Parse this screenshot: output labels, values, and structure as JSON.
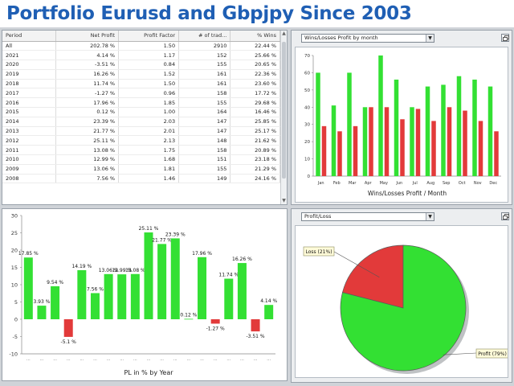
{
  "title": "Portfolio Eurusd and Gbpjpy Since 2003",
  "colors": {
    "positive": "#1a2fd0",
    "negative": "#e0201c",
    "bar_green": "#33e033",
    "bar_red": "#e23a3a"
  },
  "table": {
    "headers": [
      "Period",
      "Net Profit",
      "Profit Factor",
      "# of trad...",
      "% Wins"
    ],
    "rows": [
      [
        "All",
        "202.78 %",
        "1.50",
        "2910",
        "22.44 %"
      ],
      [
        "2021",
        "4.14 %",
        "1.17",
        "152",
        "25.66 %"
      ],
      [
        "2020",
        "-3.51 %",
        "0.84",
        "155",
        "20.65 %"
      ],
      [
        "2019",
        "16.26 %",
        "1.52",
        "161",
        "22.36 %"
      ],
      [
        "2018",
        "11.74 %",
        "1.50",
        "161",
        "23.60 %"
      ],
      [
        "2017",
        "-1.27 %",
        "0.96",
        "158",
        "17.72 %"
      ],
      [
        "2016",
        "17.96 %",
        "1.85",
        "155",
        "29.68 %"
      ],
      [
        "2015",
        "0.12 %",
        "1.00",
        "164",
        "16.46 %"
      ],
      [
        "2014",
        "23.39 %",
        "2.03",
        "147",
        "25.85 %"
      ],
      [
        "2013",
        "21.77 %",
        "2.01",
        "147",
        "25.17 %"
      ],
      [
        "2012",
        "25.11 %",
        "2.13",
        "148",
        "21.62 %"
      ],
      [
        "2011",
        "13.08 %",
        "1.75",
        "158",
        "20.89 %"
      ],
      [
        "2010",
        "12.99 %",
        "1.68",
        "151",
        "23.18 %"
      ],
      [
        "2009",
        "13.06 %",
        "1.81",
        "155",
        "21.29 %"
      ],
      [
        "2008",
        "7.56 %",
        "1.46",
        "149",
        "24.16 %"
      ]
    ]
  },
  "monthly_panel": {
    "dropdown_value": "Wins/Losses Profit by month"
  },
  "profit_panel": {
    "dropdown_value": "Profit/Loss"
  },
  "chart_data": [
    {
      "type": "bar",
      "categories": [
        "Jan",
        "Feb",
        "Mar",
        "Apr",
        "May",
        "Jun",
        "Jul",
        "Aug",
        "Sep",
        "Oct",
        "Nov",
        "Dec"
      ],
      "series": [
        {
          "name": "Wins",
          "values": [
            60,
            41,
            60,
            40,
            70,
            56,
            40,
            52,
            53,
            58,
            56,
            52
          ]
        },
        {
          "name": "Losses",
          "values": [
            29,
            26,
            29,
            40,
            40,
            33,
            39,
            32,
            40,
            38,
            32,
            26
          ]
        }
      ],
      "xlabel": "Wins/Losses Profit / Month",
      "ylabel": "",
      "ylim": [
        0,
        70
      ],
      "yticks": [
        "0",
        "10",
        "20",
        "30",
        "40",
        "50",
        "60",
        "70"
      ]
    },
    {
      "type": "bar",
      "categories": [
        "",
        "",
        "",
        "",
        "",
        "",
        "",
        "",
        "",
        "",
        "",
        "",
        "",
        "",
        "",
        "",
        "",
        "",
        ""
      ],
      "values": [
        17.85,
        3.93,
        9.54,
        -5.1,
        14.19,
        7.56,
        13.06,
        12.99,
        13.08,
        25.11,
        21.77,
        23.39,
        0.12,
        17.96,
        -1.27,
        11.74,
        16.26,
        -3.51,
        4.14
      ],
      "labels": [
        "17.85 %",
        "3.93 %",
        "9.54 %",
        "-5.1 %",
        "14.19 %",
        "7.56 %",
        "13.06 %",
        "12.99 %",
        "13.08 %",
        "25.11 %",
        "21.77 %",
        "23.39 %",
        "0.12 %",
        "17.96 %",
        "-1.27 %",
        "11.74 %",
        "16.26 %",
        "-3.51 %",
        "4.14 %"
      ],
      "xlabel": "PL in % by Year",
      "ylabel": "",
      "ylim": [
        -10,
        30
      ],
      "yticks": [
        "-10",
        "-5",
        "0",
        "5",
        "10",
        "15",
        "20",
        "25",
        "30"
      ],
      "xtick_text": "..."
    },
    {
      "type": "pie",
      "slices": [
        {
          "label": "Profit (79%)",
          "value": 79,
          "color": "#33e033"
        },
        {
          "label": "Loss (21%)",
          "value": 21,
          "color": "#e23a3a"
        }
      ]
    }
  ]
}
